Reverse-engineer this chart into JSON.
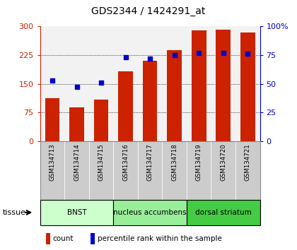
{
  "title": "GDS2344 / 1424291_at",
  "samples": [
    "GSM134713",
    "GSM134714",
    "GSM134715",
    "GSM134716",
    "GSM134717",
    "GSM134718",
    "GSM134719",
    "GSM134720",
    "GSM134721"
  ],
  "counts": [
    113,
    88,
    108,
    183,
    210,
    238,
    290,
    292,
    284
  ],
  "percentiles": [
    53,
    47,
    51,
    73,
    72,
    75,
    77,
    77,
    76
  ],
  "tissues": [
    {
      "label": "BNST",
      "start": 0,
      "end": 3,
      "color": "#ccffcc"
    },
    {
      "label": "nucleus accumbens",
      "start": 3,
      "end": 6,
      "color": "#99ee99"
    },
    {
      "label": "dorsal striatum",
      "start": 6,
      "end": 9,
      "color": "#44cc44"
    }
  ],
  "bar_color": "#cc2200",
  "dot_color": "#0000cc",
  "ylim_left": [
    0,
    300
  ],
  "ylim_right": [
    0,
    100
  ],
  "yticks_left": [
    0,
    75,
    150,
    225,
    300
  ],
  "ytick_labels_left": [
    "0",
    "75",
    "150",
    "225",
    "300"
  ],
  "yticks_right": [
    0,
    25,
    50,
    75,
    100
  ],
  "ytick_labels_right": [
    "0",
    "25",
    "50",
    "75",
    "100%"
  ],
  "left_axis_color": "#cc2200",
  "right_axis_color": "#0000cc",
  "plot_bg": "#f2f2f2",
  "label_bg": "#cccccc",
  "fig_bg": "#ffffff",
  "grid_yticks": [
    75,
    150,
    225
  ]
}
